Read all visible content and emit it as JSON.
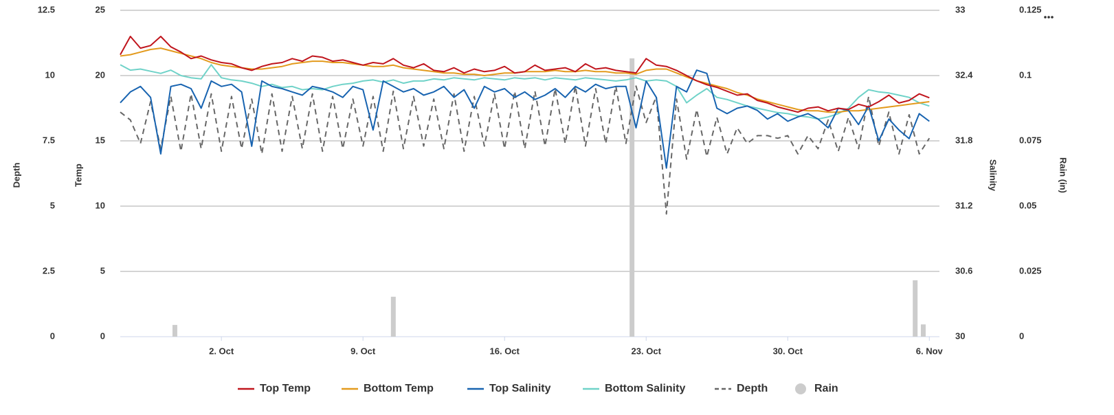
{
  "chart_data": {
    "type": "line",
    "legend": "bottom",
    "grid": true,
    "xlim": [
      -3,
      37.5
    ],
    "xticks": [
      {
        "value": 2,
        "label": "2. Oct"
      },
      {
        "value": 9,
        "label": "9. Oct"
      },
      {
        "value": 16,
        "label": "16. Oct"
      },
      {
        "value": 23,
        "label": "23. Oct"
      },
      {
        "value": 30,
        "label": "30. Oct"
      },
      {
        "value": 37,
        "label": "6. Nov"
      }
    ],
    "ylabel": "Temp",
    "ylim": [
      0,
      25
    ],
    "yticks": [
      0,
      5,
      10,
      15,
      20,
      25
    ],
    "y2label": "Salinity",
    "y2lim": [
      30,
      33
    ],
    "y2ticks": [
      30,
      30.6,
      31.2,
      31.8,
      32.4,
      33
    ],
    "y3label": "Depth",
    "y3lim": [
      0,
      12.5
    ],
    "y3ticks": [
      0,
      2.5,
      5,
      7.5,
      10,
      12.5
    ],
    "y4label": "Rain (in)",
    "y4lim": [
      0,
      0.125
    ],
    "y4ticks": [
      0,
      0.025,
      0.05,
      0.075,
      0.1,
      0.125
    ],
    "x": [
      -3,
      -2.5,
      -2,
      -1.5,
      -1,
      -0.5,
      0,
      0.5,
      1,
      1.5,
      2,
      2.5,
      3,
      3.5,
      4,
      4.5,
      5,
      5.5,
      6,
      6.5,
      7,
      7.5,
      8,
      8.5,
      9,
      9.5,
      10,
      10.5,
      11,
      11.5,
      12,
      12.5,
      13,
      13.5,
      14,
      14.5,
      15,
      15.5,
      16,
      16.5,
      17,
      17.5,
      18,
      18.5,
      19,
      19.5,
      20,
      20.5,
      21,
      21.5,
      22,
      22.5,
      23,
      23.5,
      24,
      24.5,
      25,
      25.5,
      26,
      26.5,
      27,
      27.5,
      28,
      28.5,
      29,
      29.5,
      30,
      30.5,
      31,
      31.5,
      32,
      32.5,
      33,
      33.5,
      34,
      34.5,
      35,
      35.5,
      36,
      36.5,
      37
    ],
    "series": [
      {
        "name": "Top Temp",
        "color": "#c0141c",
        "axis": "y",
        "kind": "line",
        "values": [
          21.6,
          23.0,
          22.1,
          22.3,
          23.0,
          22.2,
          21.8,
          21.3,
          21.5,
          21.2,
          21.0,
          20.9,
          20.6,
          20.4,
          20.7,
          20.9,
          21.0,
          21.3,
          21.1,
          21.5,
          21.4,
          21.1,
          21.2,
          21.0,
          20.8,
          21.0,
          20.9,
          21.3,
          20.8,
          20.6,
          20.9,
          20.4,
          20.3,
          20.6,
          20.2,
          20.5,
          20.3,
          20.4,
          20.7,
          20.2,
          20.3,
          20.8,
          20.4,
          20.5,
          20.6,
          20.3,
          20.9,
          20.5,
          20.6,
          20.4,
          20.3,
          20.2,
          21.3,
          20.8,
          20.7,
          20.4,
          20.0,
          19.6,
          19.3,
          19.1,
          18.8,
          18.5,
          18.6,
          18.1,
          17.9,
          17.6,
          17.4,
          17.2,
          17.5,
          17.6,
          17.3,
          17.5,
          17.4,
          17.8,
          17.6,
          18.0,
          18.5,
          17.9,
          18.1,
          18.6,
          18.3
        ]
      },
      {
        "name": "Bottom Temp",
        "color": "#e39a1c",
        "axis": "y",
        "kind": "line",
        "values": [
          21.5,
          21.6,
          21.8,
          22.0,
          22.1,
          21.9,
          21.7,
          21.5,
          21.3,
          21.0,
          20.8,
          20.7,
          20.6,
          20.5,
          20.5,
          20.6,
          20.7,
          20.9,
          21.0,
          21.1,
          21.1,
          21.0,
          21.0,
          20.9,
          20.8,
          20.7,
          20.7,
          20.8,
          20.6,
          20.5,
          20.4,
          20.3,
          20.2,
          20.2,
          20.1,
          20.1,
          20.0,
          20.1,
          20.2,
          20.2,
          20.3,
          20.3,
          20.3,
          20.4,
          20.3,
          20.3,
          20.4,
          20.3,
          20.3,
          20.2,
          20.2,
          20.1,
          20.4,
          20.5,
          20.5,
          20.2,
          19.9,
          19.6,
          19.4,
          19.2,
          19.0,
          18.7,
          18.5,
          18.2,
          18.0,
          17.8,
          17.6,
          17.4,
          17.3,
          17.3,
          17.2,
          17.2,
          17.3,
          17.3,
          17.4,
          17.5,
          17.6,
          17.7,
          17.8,
          17.9,
          18.0
        ]
      },
      {
        "name": "Top Salinity",
        "color": "#1763b0",
        "axis": "y2",
        "kind": "line",
        "values": [
          32.15,
          32.25,
          32.3,
          32.2,
          31.68,
          32.3,
          32.32,
          32.28,
          32.1,
          32.35,
          32.3,
          32.32,
          32.25,
          31.75,
          32.35,
          32.3,
          32.28,
          32.25,
          32.22,
          32.3,
          32.28,
          32.25,
          32.2,
          32.3,
          32.27,
          31.9,
          32.35,
          32.3,
          32.25,
          32.28,
          32.22,
          32.25,
          32.3,
          32.2,
          32.27,
          32.1,
          32.3,
          32.25,
          32.28,
          32.2,
          32.25,
          32.18,
          32.22,
          32.28,
          32.2,
          32.3,
          32.25,
          32.32,
          32.28,
          32.3,
          32.3,
          31.92,
          32.35,
          32.2,
          31.55,
          32.3,
          32.25,
          32.45,
          32.42,
          32.1,
          32.05,
          32.1,
          32.12,
          32.08,
          32.0,
          32.05,
          31.98,
          32.02,
          32.05,
          32.0,
          31.92,
          32.1,
          32.08,
          31.95,
          32.12,
          31.8,
          32.0,
          31.9,
          31.82,
          32.05,
          31.98
        ]
      },
      {
        "name": "Bottom Salinity",
        "color": "#6fd2c8",
        "axis": "y2",
        "kind": "line",
        "values": [
          32.5,
          32.45,
          32.46,
          32.44,
          32.42,
          32.45,
          32.4,
          32.38,
          32.37,
          32.5,
          32.38,
          32.36,
          32.35,
          32.33,
          32.3,
          32.32,
          32.29,
          32.3,
          32.27,
          32.28,
          32.27,
          32.3,
          32.32,
          32.33,
          32.35,
          32.36,
          32.34,
          32.36,
          32.33,
          32.35,
          32.35,
          32.37,
          32.36,
          32.38,
          32.37,
          32.36,
          32.38,
          32.37,
          32.36,
          32.38,
          32.37,
          32.38,
          32.36,
          32.38,
          32.37,
          32.36,
          32.38,
          32.37,
          32.36,
          32.35,
          32.36,
          32.38,
          32.35,
          32.36,
          32.35,
          32.3,
          32.15,
          32.22,
          32.28,
          32.2,
          32.18,
          32.15,
          32.12,
          32.1,
          32.08,
          32.06,
          32.05,
          32.03,
          32.02,
          32.0,
          32.02,
          32.05,
          32.1,
          32.2,
          32.27,
          32.25,
          32.24,
          32.22,
          32.2,
          32.15,
          32.12
        ]
      },
      {
        "name": "Depth",
        "color": "#666666",
        "axis": "y3",
        "kind": "line",
        "dashed": true,
        "values": [
          8.6,
          8.3,
          7.4,
          9.0,
          7.2,
          9.2,
          7.1,
          9.3,
          7.2,
          9.3,
          7.1,
          9.2,
          7.2,
          9.1,
          7.0,
          9.3,
          7.1,
          9.2,
          7.2,
          9.3,
          7.1,
          9.2,
          7.2,
          9.1,
          7.3,
          9.2,
          7.1,
          9.4,
          7.2,
          9.2,
          7.3,
          9.1,
          7.2,
          9.3,
          7.1,
          9.2,
          7.3,
          9.3,
          7.2,
          9.4,
          7.2,
          9.4,
          7.3,
          9.5,
          7.4,
          9.6,
          7.3,
          9.5,
          7.4,
          9.6,
          7.4,
          9.6,
          8.2,
          9.2,
          4.7,
          9.1,
          6.8,
          8.7,
          6.9,
          8.4,
          7.0,
          8.0,
          7.4,
          7.7,
          7.7,
          7.6,
          7.7,
          7.0,
          7.7,
          7.2,
          8.3,
          7.1,
          8.4,
          7.2,
          9.2,
          7.3,
          8.6,
          7.0,
          8.5,
          7.0,
          7.6
        ]
      },
      {
        "name": "Rain",
        "color": "#cccccc",
        "axis": "y4",
        "kind": "column",
        "x": [
          -0.3,
          10.5,
          22.3,
          36.3,
          36.7
        ],
        "values": [
          0.0045,
          0.0153,
          0.1066,
          0.0216,
          0.0047
        ]
      }
    ]
  }
}
